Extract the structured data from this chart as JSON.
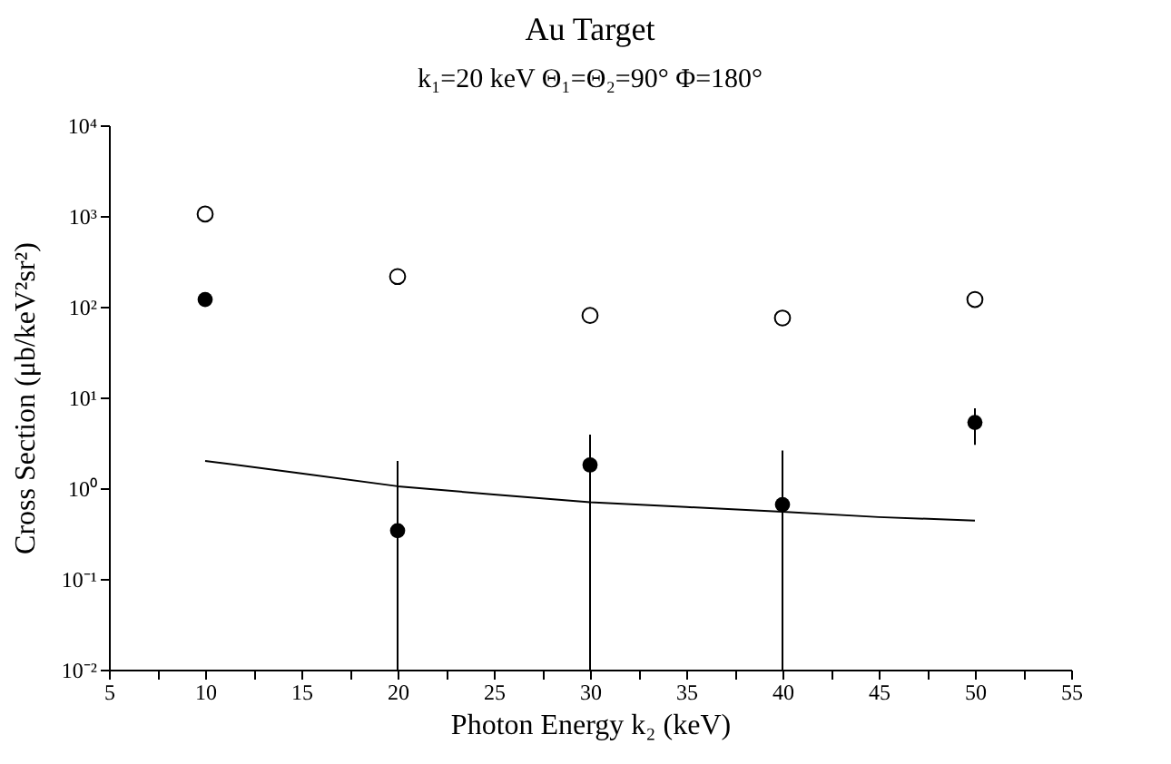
{
  "chart_data": {
    "type": "scatter",
    "title": "Au Target",
    "subtitle": "k₁=20 keV Θ₁=Θ₂=90° Φ=180°",
    "xlabel": "Photon Energy k₂ (keV)",
    "ylabel": "Cross Section (μb/keV²sr²)",
    "x": [
      10,
      20,
      30,
      40,
      50
    ],
    "series": [
      {
        "color": "#000000",
        "marker": "circle",
        "values": [
          1050,
          215,
          80,
          75,
          120
        ],
        "errors": [
          [
            900,
            1250
          ],
          [
            185,
            250
          ],
          [
            68,
            94
          ],
          [
            62,
            90
          ],
          [
            100,
            145
          ]
        ]
      },
      {
        "color": "#000000",
        "marker": "circle",
        "values": [
          120,
          0.34,
          1.8,
          0.66,
          5.3
        ],
        "errors": [
          [
            105,
            135
          ],
          [
            0.01,
            2.0
          ],
          [
            0.01,
            3.9
          ],
          [
            0.01,
            2.6
          ],
          [
            3.0,
            7.6
          ]
        ]
      },
      {
        "type": "line",
        "color": "#000000",
        "marker": "none",
        "line_style": "solid",
        "x": [
          10,
          15,
          20,
          25,
          30,
          35,
          40,
          45,
          50
        ],
        "values": [
          2.0,
          1.45,
          1.05,
          0.85,
          0.7,
          0.62,
          0.55,
          0.48,
          0.44
        ]
      }
    ],
    "log": "y",
    "grid": false,
    "xlim": [
      5,
      55
    ],
    "xticks": [
      5,
      {
        "value": 7.5,
        "label": null
      },
      10,
      {
        "value": 12.5,
        "label": null
      },
      15,
      {
        "value": 17.5,
        "label": null
      },
      20,
      {
        "value": 22.5,
        "label": null
      },
      25,
      {
        "value": 27.5,
        "label": null
      },
      30,
      {
        "value": 32.5,
        "label": null
      },
      35,
      {
        "value": 37.5,
        "label": null
      },
      40,
      {
        "value": 42.5,
        "label": null
      },
      45,
      {
        "value": 47.5,
        "label": null
      },
      50,
      {
        "value": 52.5,
        "label": null
      },
      55
    ],
    "ylim": [
      0.01,
      10000
    ],
    "yticks": [
      {
        "value": 0.01,
        "label": "10⁻²"
      },
      {
        "value": 0.1,
        "label": "10⁻¹"
      },
      {
        "value": 1,
        "label": "10⁰"
      },
      {
        "value": 10,
        "label": "10¹"
      },
      {
        "value": 100,
        "label": "10²"
      },
      {
        "value": 1000,
        "label": "10³"
      },
      {
        "value": 10000,
        "label": "10⁴"
      }
    ]
  }
}
